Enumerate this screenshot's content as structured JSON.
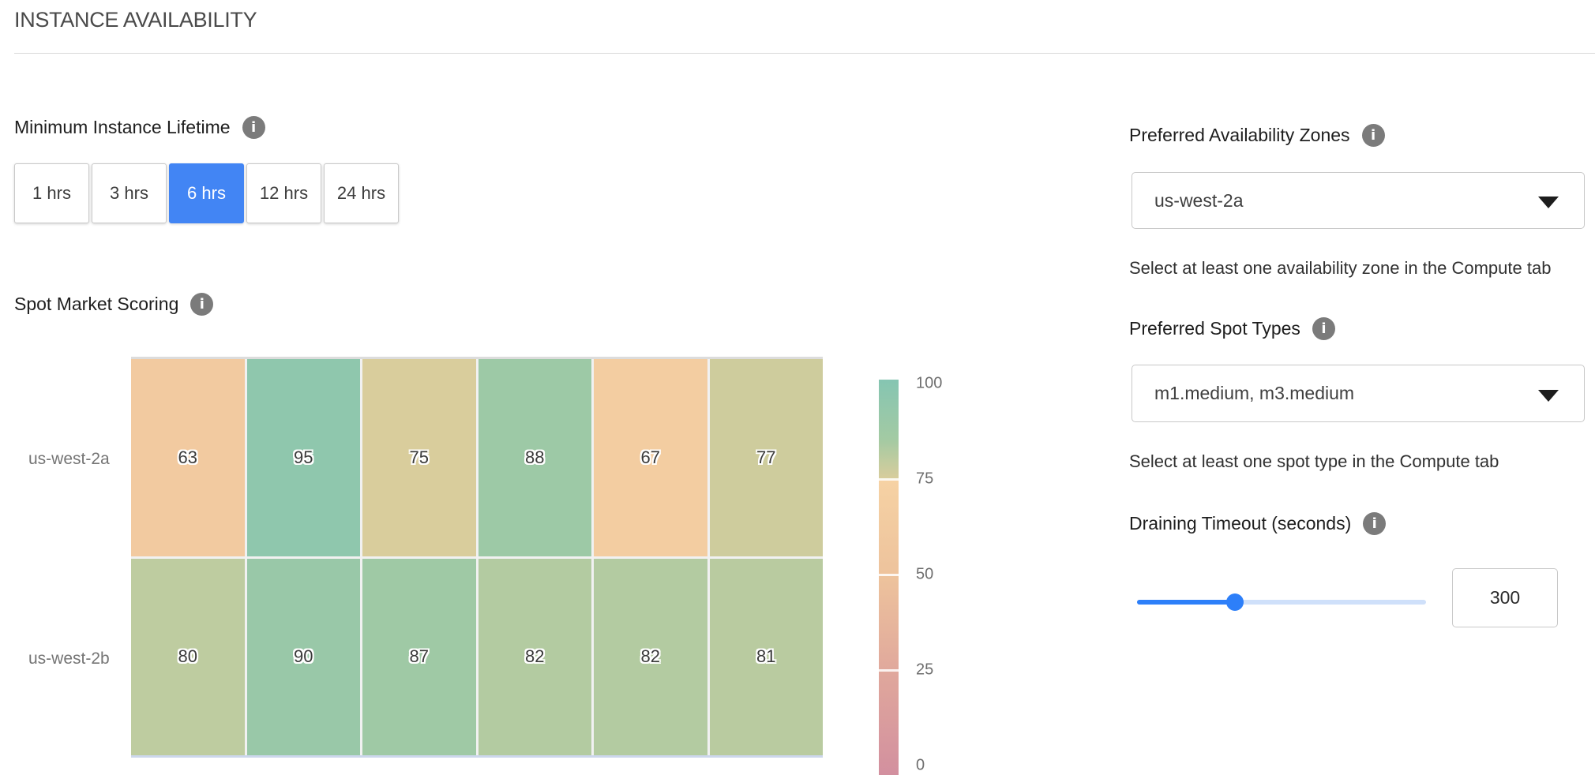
{
  "header": {
    "title": "INSTANCE AVAILABILITY"
  },
  "lifetime": {
    "label": "Minimum Instance Lifetime",
    "options": [
      "1 hrs",
      "3 hrs",
      "6 hrs",
      "12 hrs",
      "24 hrs"
    ],
    "selected": "6 hrs"
  },
  "scoring": {
    "label": "Spot Market Scoring"
  },
  "chart_data": {
    "type": "heatmap",
    "title": "Spot Market Scoring",
    "rows": [
      "us-west-2a",
      "us-west-2b"
    ],
    "columns": 6,
    "values": [
      [
        63,
        95,
        75,
        88,
        67,
        77
      ],
      [
        80,
        90,
        87,
        82,
        82,
        81
      ]
    ],
    "colorbar": {
      "min": 0,
      "max": 100,
      "ticks": [
        100,
        75,
        50,
        25,
        0
      ],
      "divider_values": [
        75,
        50,
        25
      ]
    },
    "colormap_stops": [
      [
        0,
        "#d28f9f"
      ],
      [
        25,
        "#dfa69c"
      ],
      [
        50,
        "#edc29c"
      ],
      [
        74.99,
        "#f6d2a4"
      ],
      [
        75,
        "#d9cd9c"
      ],
      [
        85,
        "#a3caa3"
      ],
      [
        100,
        "#85c5b2"
      ]
    ]
  },
  "zones": {
    "label": "Preferred Availability Zones",
    "value": "us-west-2a",
    "helper": "Select at least one availability zone in the Compute tab"
  },
  "spot_types": {
    "label": "Preferred Spot Types",
    "value": "m1.medium, m3.medium",
    "helper": "Select at least one spot type in the Compute tab"
  },
  "draining": {
    "label": "Draining Timeout (seconds)",
    "value": "300",
    "slider_percent": 34
  },
  "icons": {
    "info_glyph": "i"
  },
  "colors": {
    "accent_blue": "#4285f4",
    "slider_blue": "#2d7ff9",
    "slider_track_light": "#cfe0fa",
    "info_gray": "#7b7b7b"
  }
}
